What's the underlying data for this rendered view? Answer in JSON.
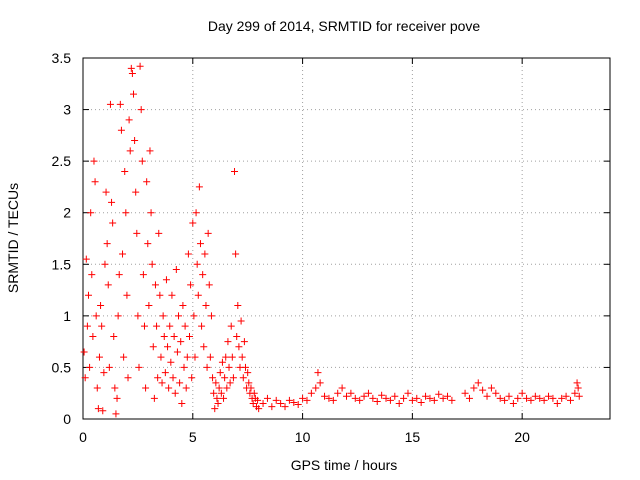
{
  "chart_data": {
    "type": "scatter",
    "title": "Day 299 of 2014, SRMTID for receiver pove",
    "xlabel": "GPS time / hours",
    "ylabel": "SRMTID / TECUs",
    "xlim": [
      0,
      24
    ],
    "ylim": [
      0,
      3.5
    ],
    "xticks": [
      0,
      5,
      10,
      15,
      20
    ],
    "xtick_labels": [
      "0",
      "5",
      "10",
      "15",
      "20"
    ],
    "yticks": [
      0,
      0.5,
      1,
      1.5,
      2,
      2.5,
      3,
      3.5
    ],
    "ytick_labels": [
      "0",
      "0.5",
      "1",
      "1.5",
      "2",
      "2.5",
      "3",
      "3.5"
    ],
    "grid": true,
    "marker": "+",
    "series": [
      {
        "name": "SRMTID",
        "color": "#ff0000",
        "points": [
          [
            0.05,
            0.65
          ],
          [
            0.1,
            0.4
          ],
          [
            0.15,
            1.55
          ],
          [
            0.2,
            0.9
          ],
          [
            0.25,
            1.2
          ],
          [
            0.3,
            0.5
          ],
          [
            0.35,
            2.0
          ],
          [
            0.4,
            1.4
          ],
          [
            0.45,
            0.8
          ],
          [
            0.5,
            2.5
          ],
          [
            0.55,
            2.3
          ],
          [
            0.6,
            1.0
          ],
          [
            0.65,
            0.3
          ],
          [
            0.7,
            0.1
          ],
          [
            0.75,
            0.6
          ],
          [
            0.8,
            1.1
          ],
          [
            0.85,
            0.9
          ],
          [
            0.9,
            0.08
          ],
          [
            0.95,
            0.45
          ],
          [
            1.0,
            1.5
          ],
          [
            1.05,
            2.2
          ],
          [
            1.1,
            1.7
          ],
          [
            1.15,
            1.3
          ],
          [
            1.2,
            0.5
          ],
          [
            1.25,
            3.05
          ],
          [
            1.3,
            2.1
          ],
          [
            1.35,
            1.9
          ],
          [
            1.4,
            0.8
          ],
          [
            1.45,
            0.3
          ],
          [
            1.5,
            0.05
          ],
          [
            1.55,
            0.2
          ],
          [
            1.6,
            1.0
          ],
          [
            1.65,
            1.4
          ],
          [
            1.7,
            3.05
          ],
          [
            1.75,
            2.8
          ],
          [
            1.8,
            1.6
          ],
          [
            1.85,
            0.6
          ],
          [
            1.9,
            2.4
          ],
          [
            1.95,
            2.0
          ],
          [
            2.0,
            1.2
          ],
          [
            2.05,
            0.4
          ],
          [
            2.1,
            2.9
          ],
          [
            2.15,
            2.6
          ],
          [
            2.2,
            3.4
          ],
          [
            2.25,
            3.35
          ],
          [
            2.3,
            3.15
          ],
          [
            2.35,
            2.7
          ],
          [
            2.4,
            2.2
          ],
          [
            2.45,
            1.8
          ],
          [
            2.5,
            1.0
          ],
          [
            2.55,
            0.5
          ],
          [
            2.6,
            3.42
          ],
          [
            2.65,
            3.0
          ],
          [
            2.7,
            2.5
          ],
          [
            2.75,
            1.4
          ],
          [
            2.8,
            0.9
          ],
          [
            2.85,
            0.3
          ],
          [
            2.9,
            2.3
          ],
          [
            2.95,
            1.7
          ],
          [
            3.0,
            1.1
          ],
          [
            3.05,
            2.6
          ],
          [
            3.1,
            2.0
          ],
          [
            3.15,
            1.5
          ],
          [
            3.2,
            0.7
          ],
          [
            3.25,
            0.2
          ],
          [
            3.3,
            1.3
          ],
          [
            3.35,
            0.9
          ],
          [
            3.4,
            0.4
          ],
          [
            3.45,
            1.8
          ],
          [
            3.5,
            1.2
          ],
          [
            3.55,
            0.6
          ],
          [
            3.6,
            0.35
          ],
          [
            3.65,
            1.0
          ],
          [
            3.7,
            0.8
          ],
          [
            3.75,
            0.45
          ],
          [
            3.8,
            1.35
          ],
          [
            3.85,
            0.7
          ],
          [
            3.9,
            0.3
          ],
          [
            3.95,
            0.9
          ],
          [
            4.0,
            0.55
          ],
          [
            4.05,
            1.2
          ],
          [
            4.1,
            0.4
          ],
          [
            4.15,
            0.8
          ],
          [
            4.2,
            0.25
          ],
          [
            4.25,
            1.45
          ],
          [
            4.3,
            0.65
          ],
          [
            4.35,
            1.0
          ],
          [
            4.4,
            0.35
          ],
          [
            4.45,
            0.75
          ],
          [
            4.5,
            0.15
          ],
          [
            4.55,
            1.1
          ],
          [
            4.6,
            0.5
          ],
          [
            4.65,
            0.9
          ],
          [
            4.7,
            0.3
          ],
          [
            4.75,
            0.6
          ],
          [
            4.8,
            1.6
          ],
          [
            4.85,
            0.8
          ],
          [
            4.9,
            1.3
          ],
          [
            4.95,
            0.4
          ],
          [
            5.0,
            1.9
          ],
          [
            5.05,
            1.0
          ],
          [
            5.1,
            0.6
          ],
          [
            5.15,
            2.0
          ],
          [
            5.2,
            1.5
          ],
          [
            5.25,
            1.2
          ],
          [
            5.3,
            2.25
          ],
          [
            5.35,
            1.7
          ],
          [
            5.4,
            0.9
          ],
          [
            5.45,
            1.4
          ],
          [
            5.5,
            0.7
          ],
          [
            5.55,
            1.6
          ],
          [
            5.6,
            1.1
          ],
          [
            5.65,
            0.5
          ],
          [
            5.7,
            1.8
          ],
          [
            5.75,
            1.3
          ],
          [
            5.8,
            0.6
          ],
          [
            5.85,
            1.0
          ],
          [
            5.9,
            0.4
          ],
          [
            5.95,
            0.25
          ],
          [
            6.0,
            0.1
          ],
          [
            6.05,
            0.35
          ],
          [
            6.1,
            0.2
          ],
          [
            6.15,
            0.15
          ],
          [
            6.2,
            0.3
          ],
          [
            6.25,
            0.45
          ],
          [
            6.3,
            0.25
          ],
          [
            6.35,
            0.55
          ],
          [
            6.4,
            0.2
          ],
          [
            6.45,
            0.4
          ],
          [
            6.5,
            0.6
          ],
          [
            6.55,
            0.3
          ],
          [
            6.6,
            0.75
          ],
          [
            6.65,
            0.5
          ],
          [
            6.7,
            0.35
          ],
          [
            6.75,
            0.9
          ],
          [
            6.8,
            0.6
          ],
          [
            6.85,
            0.4
          ],
          [
            6.9,
            2.4
          ],
          [
            6.95,
            1.6
          ],
          [
            7.0,
            0.8
          ],
          [
            7.05,
            1.1
          ],
          [
            7.1,
            0.7
          ],
          [
            7.15,
            0.5
          ],
          [
            7.2,
            0.95
          ],
          [
            7.25,
            0.6
          ],
          [
            7.3,
            0.4
          ],
          [
            7.35,
            0.75
          ],
          [
            7.4,
            0.5
          ],
          [
            7.45,
            0.3
          ],
          [
            7.5,
            0.45
          ],
          [
            7.55,
            0.35
          ],
          [
            7.6,
            0.25
          ],
          [
            7.65,
            0.3
          ],
          [
            7.7,
            0.2
          ],
          [
            7.75,
            0.15
          ],
          [
            7.8,
            0.25
          ],
          [
            7.85,
            0.2
          ],
          [
            7.9,
            0.12
          ],
          [
            7.95,
            0.18
          ],
          [
            8.0,
            0.1
          ],
          [
            8.2,
            0.15
          ],
          [
            8.4,
            0.2
          ],
          [
            8.6,
            0.12
          ],
          [
            8.8,
            0.18
          ],
          [
            9.0,
            0.15
          ],
          [
            9.2,
            0.12
          ],
          [
            9.4,
            0.18
          ],
          [
            9.6,
            0.16
          ],
          [
            9.8,
            0.14
          ],
          [
            10.0,
            0.2
          ],
          [
            10.2,
            0.18
          ],
          [
            10.4,
            0.25
          ],
          [
            10.6,
            0.3
          ],
          [
            10.7,
            0.45
          ],
          [
            10.8,
            0.35
          ],
          [
            11.0,
            0.22
          ],
          [
            11.2,
            0.2
          ],
          [
            11.4,
            0.18
          ],
          [
            11.6,
            0.25
          ],
          [
            11.8,
            0.3
          ],
          [
            12.0,
            0.22
          ],
          [
            12.2,
            0.25
          ],
          [
            12.4,
            0.2
          ],
          [
            12.6,
            0.18
          ],
          [
            12.8,
            0.22
          ],
          [
            13.0,
            0.25
          ],
          [
            13.2,
            0.2
          ],
          [
            13.4,
            0.17
          ],
          [
            13.6,
            0.23
          ],
          [
            13.8,
            0.2
          ],
          [
            14.0,
            0.18
          ],
          [
            14.2,
            0.22
          ],
          [
            14.4,
            0.15
          ],
          [
            14.6,
            0.2
          ],
          [
            14.8,
            0.25
          ],
          [
            15.0,
            0.18
          ],
          [
            15.2,
            0.2
          ],
          [
            15.4,
            0.16
          ],
          [
            15.6,
            0.22
          ],
          [
            15.8,
            0.2
          ],
          [
            16.0,
            0.18
          ],
          [
            16.2,
            0.24
          ],
          [
            16.4,
            0.2
          ],
          [
            16.6,
            0.22
          ],
          [
            16.8,
            0.18
          ],
          [
            17.4,
            0.25
          ],
          [
            17.6,
            0.2
          ],
          [
            17.8,
            0.3
          ],
          [
            18.0,
            0.35
          ],
          [
            18.2,
            0.28
          ],
          [
            18.4,
            0.22
          ],
          [
            18.6,
            0.3
          ],
          [
            18.8,
            0.25
          ],
          [
            19.0,
            0.2
          ],
          [
            19.2,
            0.18
          ],
          [
            19.4,
            0.22
          ],
          [
            19.6,
            0.15
          ],
          [
            19.8,
            0.2
          ],
          [
            20.0,
            0.25
          ],
          [
            20.2,
            0.2
          ],
          [
            20.4,
            0.18
          ],
          [
            20.6,
            0.22
          ],
          [
            20.8,
            0.2
          ],
          [
            21.0,
            0.18
          ],
          [
            21.2,
            0.22
          ],
          [
            21.4,
            0.2
          ],
          [
            21.6,
            0.15
          ],
          [
            21.8,
            0.2
          ],
          [
            22.0,
            0.22
          ],
          [
            22.2,
            0.18
          ],
          [
            22.4,
            0.25
          ],
          [
            22.5,
            0.35
          ],
          [
            22.55,
            0.3
          ],
          [
            22.6,
            0.22
          ]
        ]
      }
    ]
  }
}
